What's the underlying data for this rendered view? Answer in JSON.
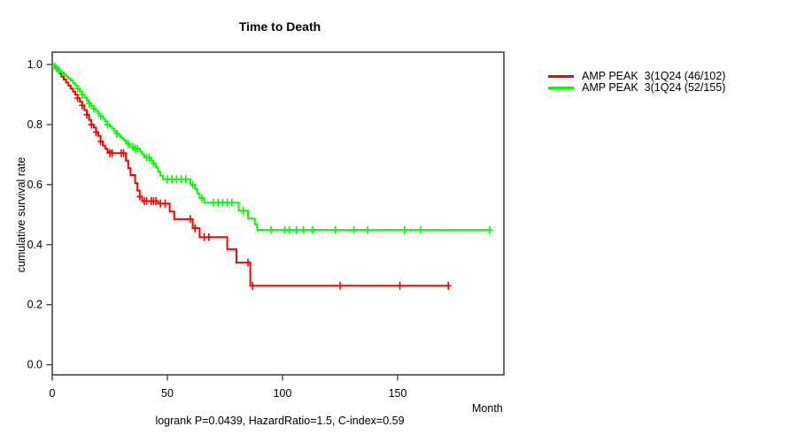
{
  "title": "Time to Death",
  "footnote": "logrank P=0.0439, HazardRatio=1.5, C-index=0.59",
  "axes": {
    "x_label": "Month",
    "y_label": "cumulative survival rate",
    "x_ticks": [
      {
        "v": 0,
        "label": "0"
      },
      {
        "v": 50,
        "label": "50"
      },
      {
        "v": 100,
        "label": "100"
      },
      {
        "v": 150,
        "label": "150"
      }
    ],
    "y_ticks": [
      {
        "v": 0.0,
        "label": "0.0"
      },
      {
        "v": 0.2,
        "label": "0.2"
      },
      {
        "v": 0.4,
        "label": "0.4"
      },
      {
        "v": 0.6,
        "label": "0.6"
      },
      {
        "v": 0.8,
        "label": "0.8"
      },
      {
        "v": 1.0,
        "label": "1.0"
      }
    ]
  },
  "legend": {
    "items": [
      {
        "label": "AMP PEAK  3(1Q24 (46/102)",
        "color": "#ff0000"
      },
      {
        "label": "AMP PEAK  3(1Q24 (52/155)",
        "color": "#00ff00"
      }
    ]
  },
  "colors": {
    "axis_box": "#3a3a3a",
    "red_curve": "#ff0000",
    "green_curve": "#00ff00"
  },
  "chart_data": {
    "type": "line",
    "subtype": "kaplan-meier-step",
    "title": "Time to Death",
    "xlabel": "Month",
    "ylabel": "cumulative survival rate",
    "xlim": [
      0,
      196
    ],
    "ylim": [
      0,
      1.04
    ],
    "x_ticks": [
      0,
      50,
      100,
      150
    ],
    "y_ticks": [
      0,
      0.2,
      0.4,
      0.6,
      0.8,
      1.0
    ],
    "grid": false,
    "legend_position": "right-outside",
    "annotation": "logrank P=0.0439, HazardRatio=1.5, C-index=0.59",
    "series": [
      {
        "name": "AMP PEAK  3(1Q24 (46/102)",
        "slug": "red",
        "color": "#ff0000",
        "end_month": 172,
        "steps": [
          [
            0,
            1.0
          ],
          [
            1,
            0.99
          ],
          [
            2,
            0.98
          ],
          [
            3,
            0.97
          ],
          [
            4,
            0.96
          ],
          [
            5,
            0.95
          ],
          [
            6,
            0.94
          ],
          [
            7,
            0.93
          ],
          [
            8,
            0.92
          ],
          [
            9,
            0.91
          ],
          [
            10,
            0.9
          ],
          [
            11,
            0.888
          ],
          [
            12,
            0.876
          ],
          [
            13,
            0.864
          ],
          [
            14,
            0.848
          ],
          [
            15,
            0.833
          ],
          [
            16,
            0.815
          ],
          [
            17,
            0.8
          ],
          [
            18,
            0.79
          ],
          [
            19,
            0.775
          ],
          [
            20,
            0.762
          ],
          [
            21,
            0.744
          ],
          [
            22,
            0.73
          ],
          [
            23,
            0.72
          ],
          [
            24,
            0.71
          ],
          [
            26,
            0.705
          ],
          [
            32,
            0.68
          ],
          [
            33,
            0.655
          ],
          [
            34,
            0.632
          ],
          [
            36,
            0.605
          ],
          [
            37,
            0.58
          ],
          [
            38,
            0.56
          ],
          [
            39,
            0.545
          ],
          [
            46,
            0.537
          ],
          [
            51,
            0.51
          ],
          [
            53,
            0.485
          ],
          [
            61,
            0.455
          ],
          [
            64,
            0.425
          ],
          [
            76,
            0.385
          ],
          [
            80,
            0.34
          ],
          [
            86,
            0.263
          ]
        ],
        "censors": [
          [
            11,
            0.888
          ],
          [
            13,
            0.864
          ],
          [
            15,
            0.833
          ],
          [
            17,
            0.8
          ],
          [
            19,
            0.775
          ],
          [
            21,
            0.744
          ],
          [
            25,
            0.705
          ],
          [
            26,
            0.705
          ],
          [
            30,
            0.705
          ],
          [
            31,
            0.705
          ],
          [
            38,
            0.56
          ],
          [
            40,
            0.545
          ],
          [
            41,
            0.545
          ],
          [
            43,
            0.545
          ],
          [
            44,
            0.545
          ],
          [
            45,
            0.545
          ],
          [
            47,
            0.537
          ],
          [
            49,
            0.537
          ],
          [
            60,
            0.485
          ],
          [
            62,
            0.455
          ],
          [
            66,
            0.425
          ],
          [
            68,
            0.425
          ],
          [
            85,
            0.34
          ],
          [
            87,
            0.263
          ],
          [
            125,
            0.263
          ],
          [
            151,
            0.263
          ],
          [
            172,
            0.263
          ]
        ]
      },
      {
        "name": "AMP PEAK  3(1Q24 (52/155)",
        "slug": "green",
        "color": "#00ff00",
        "end_month": 190,
        "steps": [
          [
            0,
            1.0
          ],
          [
            1,
            0.994
          ],
          [
            2,
            0.987
          ],
          [
            3,
            0.98
          ],
          [
            4,
            0.974
          ],
          [
            5,
            0.967
          ],
          [
            6,
            0.96
          ],
          [
            7,
            0.953
          ],
          [
            8,
            0.946
          ],
          [
            9,
            0.938
          ],
          [
            10,
            0.93
          ],
          [
            11,
            0.92
          ],
          [
            12,
            0.91
          ],
          [
            13,
            0.9
          ],
          [
            14,
            0.89
          ],
          [
            15,
            0.88
          ],
          [
            16,
            0.87
          ],
          [
            17,
            0.862
          ],
          [
            18,
            0.853
          ],
          [
            19,
            0.845
          ],
          [
            20,
            0.836
          ],
          [
            21,
            0.828
          ],
          [
            22,
            0.82
          ],
          [
            23,
            0.81
          ],
          [
            24,
            0.8
          ],
          [
            25,
            0.793
          ],
          [
            26,
            0.786
          ],
          [
            27,
            0.778
          ],
          [
            28,
            0.77
          ],
          [
            29,
            0.762
          ],
          [
            30,
            0.755
          ],
          [
            31,
            0.748
          ],
          [
            32,
            0.74
          ],
          [
            33,
            0.735
          ],
          [
            34,
            0.725
          ],
          [
            36,
            0.72
          ],
          [
            38,
            0.71
          ],
          [
            39,
            0.7
          ],
          [
            40,
            0.69
          ],
          [
            43,
            0.68
          ],
          [
            44,
            0.67
          ],
          [
            45,
            0.657
          ],
          [
            46,
            0.643
          ],
          [
            47,
            0.63
          ],
          [
            48,
            0.618
          ],
          [
            60,
            0.6
          ],
          [
            62,
            0.585
          ],
          [
            63,
            0.57
          ],
          [
            64,
            0.555
          ],
          [
            66,
            0.54
          ],
          [
            81,
            0.513
          ],
          [
            85,
            0.487
          ],
          [
            88,
            0.468
          ],
          [
            89,
            0.449
          ]
        ],
        "censors": [
          [
            1,
            0.994
          ],
          [
            2,
            0.987
          ],
          [
            3,
            0.98
          ],
          [
            11,
            0.92
          ],
          [
            13,
            0.9
          ],
          [
            16,
            0.87
          ],
          [
            18,
            0.853
          ],
          [
            21,
            0.828
          ],
          [
            24,
            0.8
          ],
          [
            28,
            0.77
          ],
          [
            33,
            0.735
          ],
          [
            35,
            0.725
          ],
          [
            36,
            0.72
          ],
          [
            37,
            0.72
          ],
          [
            41,
            0.69
          ],
          [
            42,
            0.69
          ],
          [
            44,
            0.67
          ],
          [
            50,
            0.618
          ],
          [
            52,
            0.618
          ],
          [
            54,
            0.618
          ],
          [
            56,
            0.618
          ],
          [
            58,
            0.618
          ],
          [
            61,
            0.6
          ],
          [
            65,
            0.555
          ],
          [
            70,
            0.54
          ],
          [
            72,
            0.54
          ],
          [
            74,
            0.54
          ],
          [
            76,
            0.54
          ],
          [
            78,
            0.54
          ],
          [
            83,
            0.513
          ],
          [
            95,
            0.449
          ],
          [
            101,
            0.449
          ],
          [
            103,
            0.449
          ],
          [
            106,
            0.449
          ],
          [
            109,
            0.449
          ],
          [
            113,
            0.449
          ],
          [
            123,
            0.449
          ],
          [
            131,
            0.449
          ],
          [
            137,
            0.449
          ],
          [
            153,
            0.449
          ],
          [
            160,
            0.449
          ],
          [
            190,
            0.449
          ]
        ]
      }
    ]
  }
}
